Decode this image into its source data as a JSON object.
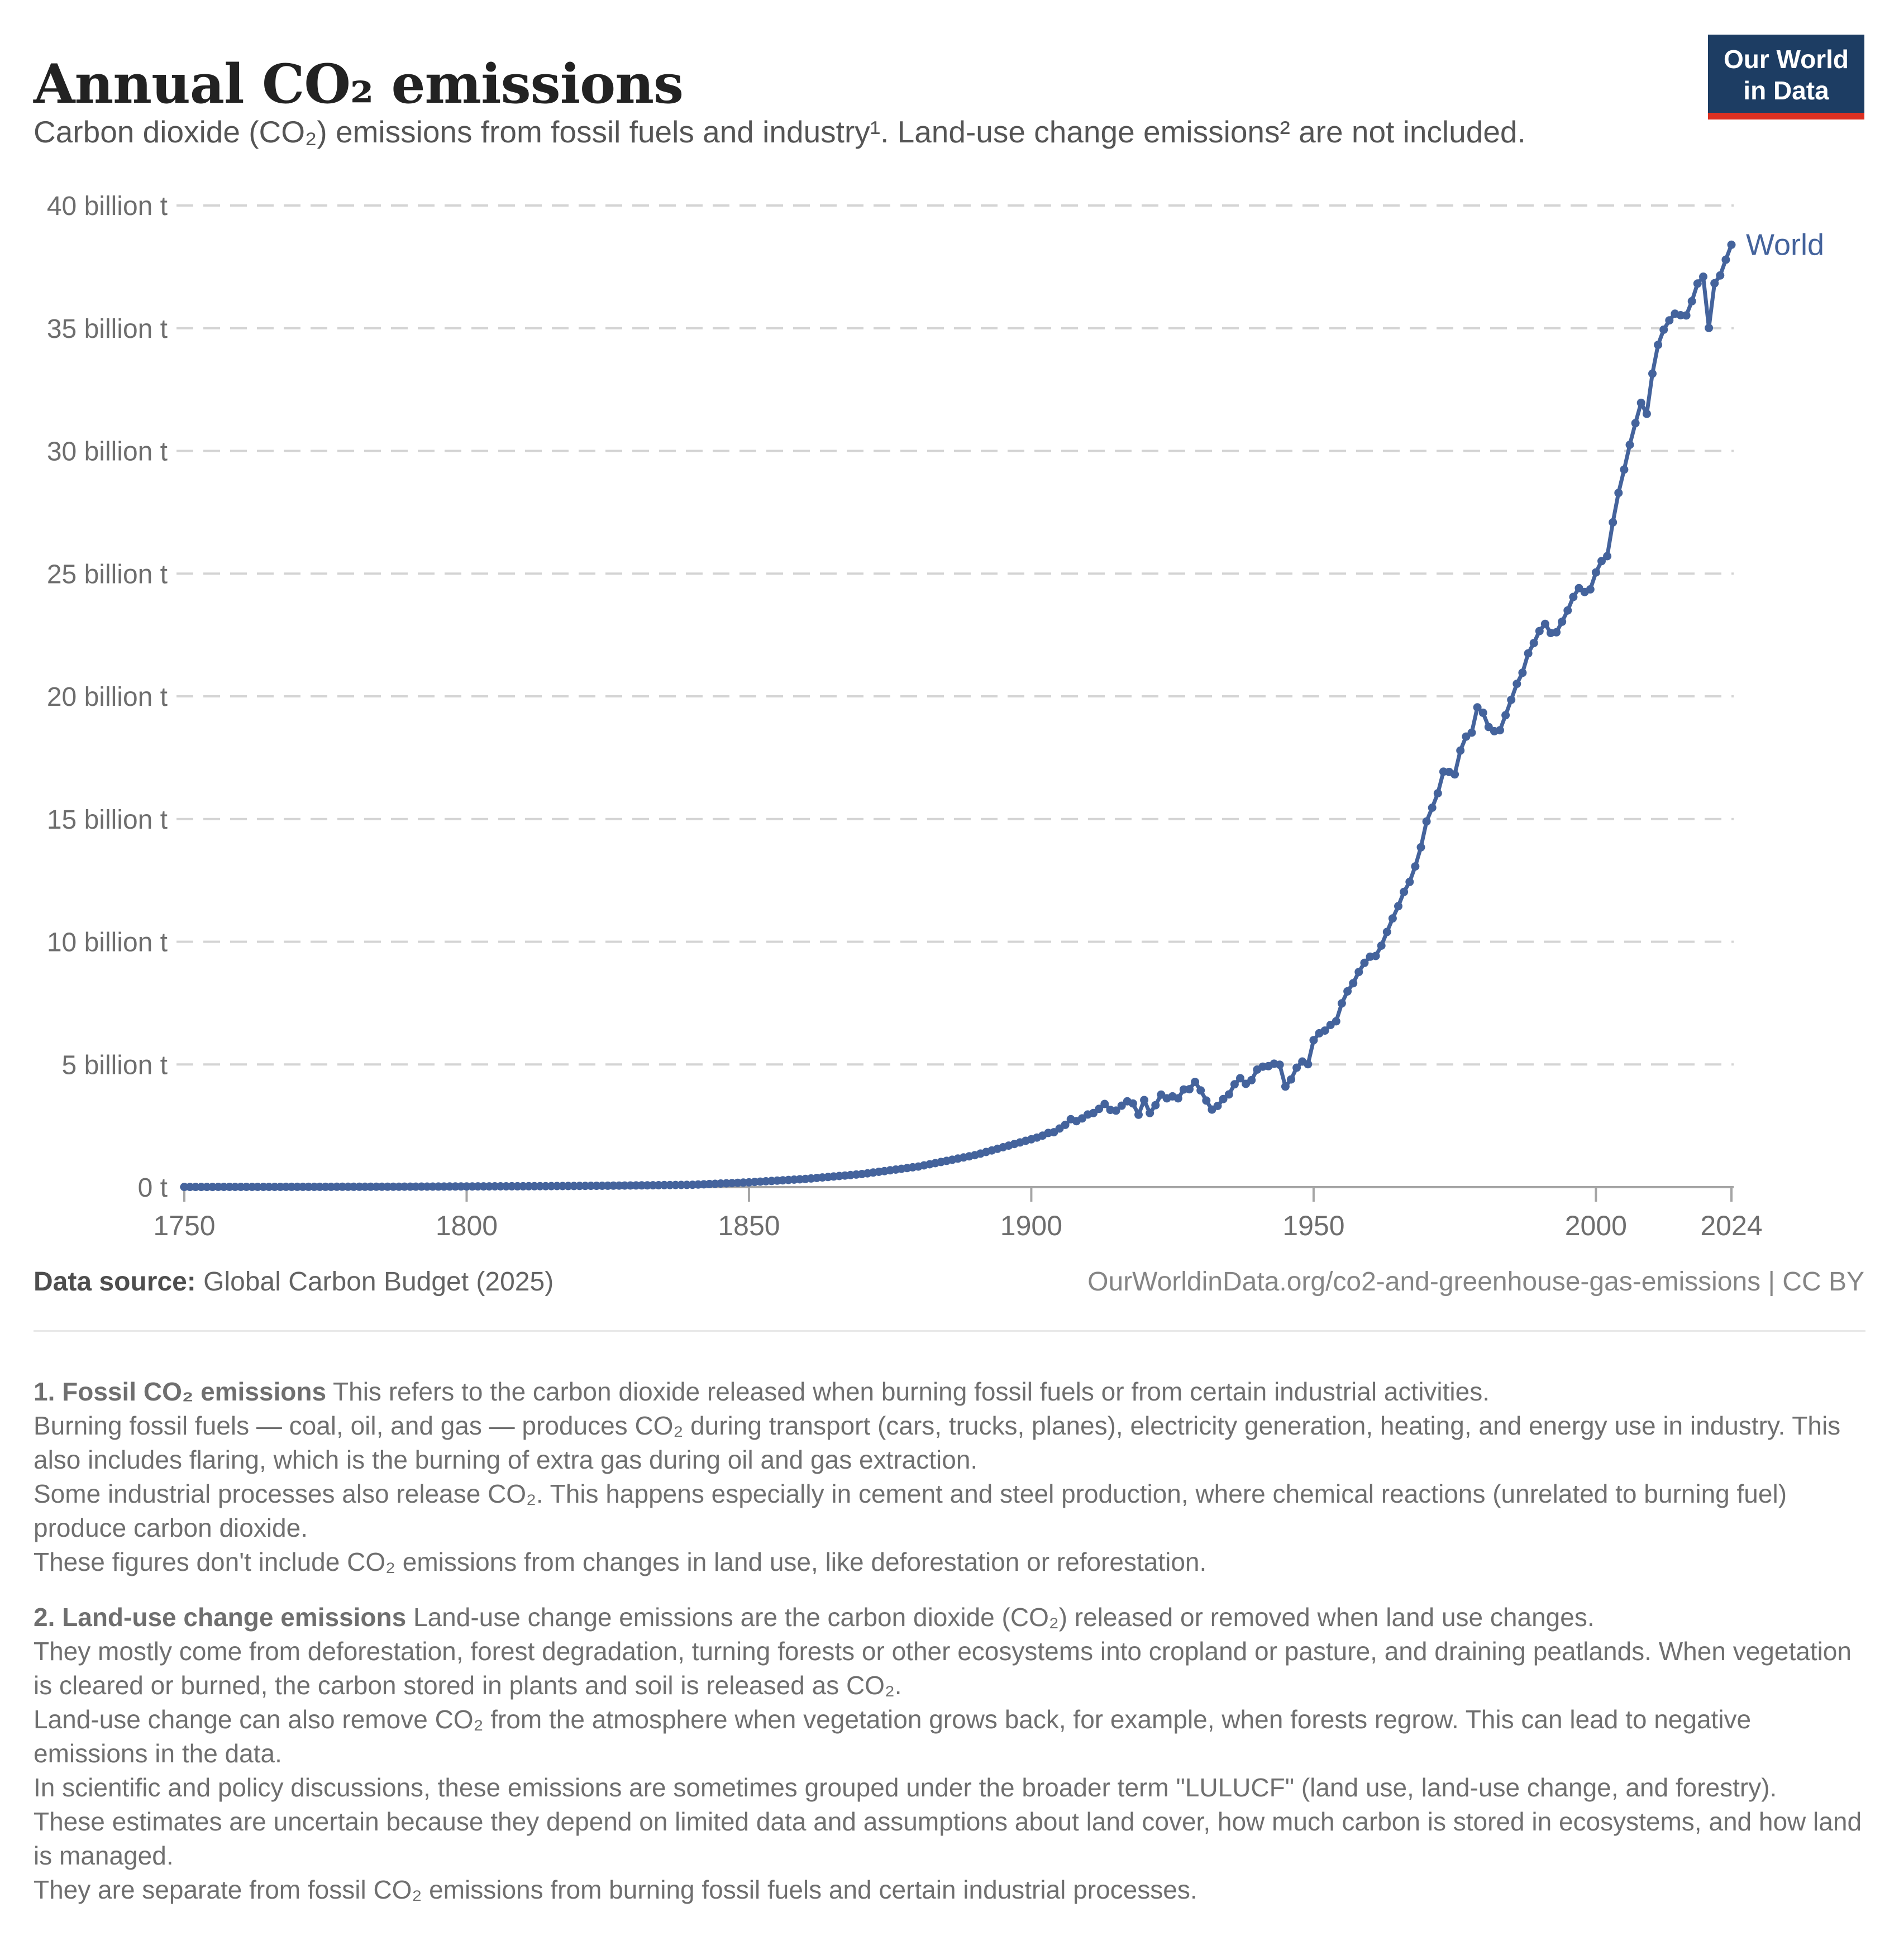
{
  "header": {
    "title": "Annual CO₂ emissions",
    "subtitle": "Carbon dioxide (CO₂) emissions from fossil fuels and industry¹. Land-use change emissions² are not included.",
    "logo": {
      "line1": "Our World",
      "line2": "in Data",
      "bg": "#1d3d63",
      "accent": "#dc3022"
    }
  },
  "chart_data": {
    "type": "line",
    "title": "Annual CO₂ emissions",
    "xlabel": "",
    "ylabel": "",
    "unit": "billion t",
    "xlim": [
      1750,
      2024
    ],
    "ylim": [
      0,
      40
    ],
    "grid": "dashed horizontal",
    "legend_position": "end-of-line label",
    "series_label": "World",
    "color": "#44639C",
    "x_axis": {
      "ticks": [
        1750,
        1800,
        1850,
        1900,
        1950,
        2000,
        2024
      ]
    },
    "y_axis": {
      "ticks": [
        {
          "value": 0,
          "label": "0 t"
        },
        {
          "value": 5,
          "label": "5 billion t"
        },
        {
          "value": 10,
          "label": "10 billion t"
        },
        {
          "value": 15,
          "label": "15 billion t"
        },
        {
          "value": 20,
          "label": "20 billion t"
        },
        {
          "value": 25,
          "label": "25 billion t"
        },
        {
          "value": 30,
          "label": "30 billion t"
        },
        {
          "value": 35,
          "label": "35 billion t"
        },
        {
          "value": 40,
          "label": "40 billion t"
        }
      ]
    },
    "points": [
      [
        1750,
        0.0094
      ],
      [
        1751,
        0.0096
      ],
      [
        1752,
        0.0097
      ],
      [
        1753,
        0.0099
      ],
      [
        1754,
        0.01
      ],
      [
        1755,
        0.0102
      ],
      [
        1756,
        0.0104
      ],
      [
        1757,
        0.0105
      ],
      [
        1758,
        0.0107
      ],
      [
        1759,
        0.0108
      ],
      [
        1760,
        0.011
      ],
      [
        1761,
        0.0112
      ],
      [
        1762,
        0.0114
      ],
      [
        1763,
        0.0116
      ],
      [
        1764,
        0.0118
      ],
      [
        1765,
        0.012
      ],
      [
        1766,
        0.0122
      ],
      [
        1767,
        0.0124
      ],
      [
        1768,
        0.0126
      ],
      [
        1769,
        0.0128
      ],
      [
        1770,
        0.013
      ],
      [
        1771,
        0.0133
      ],
      [
        1772,
        0.0136
      ],
      [
        1773,
        0.0138
      ],
      [
        1774,
        0.0141
      ],
      [
        1775,
        0.0144
      ],
      [
        1776,
        0.0147
      ],
      [
        1777,
        0.015
      ],
      [
        1778,
        0.0152
      ],
      [
        1779,
        0.0155
      ],
      [
        1780,
        0.0158
      ],
      [
        1781,
        0.0162
      ],
      [
        1782,
        0.0166
      ],
      [
        1783,
        0.017
      ],
      [
        1784,
        0.0174
      ],
      [
        1785,
        0.0179
      ],
      [
        1786,
        0.0183
      ],
      [
        1787,
        0.0187
      ],
      [
        1788,
        0.0191
      ],
      [
        1789,
        0.0195
      ],
      [
        1790,
        0.0199
      ],
      [
        1791,
        0.0209
      ],
      [
        1792,
        0.0218
      ],
      [
        1793,
        0.0228
      ],
      [
        1794,
        0.0238
      ],
      [
        1795,
        0.0248
      ],
      [
        1796,
        0.0257
      ],
      [
        1797,
        0.0267
      ],
      [
        1798,
        0.0277
      ],
      [
        1799,
        0.0286
      ],
      [
        1800,
        0.0296
      ],
      [
        1801,
        0.0303
      ],
      [
        1802,
        0.031
      ],
      [
        1803,
        0.0318
      ],
      [
        1804,
        0.0325
      ],
      [
        1805,
        0.0332
      ],
      [
        1806,
        0.0339
      ],
      [
        1807,
        0.0346
      ],
      [
        1808,
        0.0354
      ],
      [
        1809,
        0.0361
      ],
      [
        1810,
        0.0368
      ],
      [
        1811,
        0.0381
      ],
      [
        1812,
        0.0393
      ],
      [
        1813,
        0.0406
      ],
      [
        1814,
        0.0418
      ],
      [
        1815,
        0.0431
      ],
      [
        1816,
        0.0444
      ],
      [
        1817,
        0.0456
      ],
      [
        1818,
        0.0469
      ],
      [
        1819,
        0.0481
      ],
      [
        1820,
        0.0494
      ],
      [
        1821,
        0.0514
      ],
      [
        1822,
        0.0535
      ],
      [
        1823,
        0.0555
      ],
      [
        1824,
        0.0576
      ],
      [
        1825,
        0.0596
      ],
      [
        1826,
        0.0616
      ],
      [
        1827,
        0.0637
      ],
      [
        1828,
        0.0657
      ],
      [
        1829,
        0.0678
      ],
      [
        1830,
        0.0698
      ],
      [
        1831,
        0.0725
      ],
      [
        1832,
        0.0752
      ],
      [
        1833,
        0.0779
      ],
      [
        1834,
        0.0806
      ],
      [
        1835,
        0.0834
      ],
      [
        1836,
        0.0861
      ],
      [
        1837,
        0.0888
      ],
      [
        1838,
        0.0915
      ],
      [
        1839,
        0.0942
      ],
      [
        1840,
        0.0969
      ],
      [
        1841,
        0.1069
      ],
      [
        1842,
        0.1168
      ],
      [
        1843,
        0.1268
      ],
      [
        1844,
        0.1368
      ],
      [
        1845,
        0.1468
      ],
      [
        1846,
        0.1567
      ],
      [
        1847,
        0.1667
      ],
      [
        1848,
        0.1767
      ],
      [
        1849,
        0.1866
      ],
      [
        1850,
        0.1966
      ],
      [
        1851,
        0.2105
      ],
      [
        1852,
        0.2243
      ],
      [
        1853,
        0.2382
      ],
      [
        1854,
        0.252
      ],
      [
        1855,
        0.2659
      ],
      [
        1856,
        0.2797
      ],
      [
        1857,
        0.2936
      ],
      [
        1858,
        0.3074
      ],
      [
        1859,
        0.3213
      ],
      [
        1860,
        0.3351
      ],
      [
        1861,
        0.355
      ],
      [
        1862,
        0.3749
      ],
      [
        1863,
        0.3948
      ],
      [
        1864,
        0.4147
      ],
      [
        1865,
        0.4346
      ],
      [
        1866,
        0.4545
      ],
      [
        1867,
        0.4744
      ],
      [
        1868,
        0.4943
      ],
      [
        1869,
        0.5142
      ],
      [
        1870,
        0.5341
      ],
      [
        1871,
        0.5647
      ],
      [
        1872,
        0.5953
      ],
      [
        1873,
        0.6258
      ],
      [
        1874,
        0.6564
      ],
      [
        1875,
        0.687
      ],
      [
        1876,
        0.7176
      ],
      [
        1877,
        0.7482
      ],
      [
        1878,
        0.7787
      ],
      [
        1879,
        0.8093
      ],
      [
        1880,
        0.8399
      ],
      [
        1881,
        0.8863
      ],
      [
        1882,
        0.9326
      ],
      [
        1883,
        0.979
      ],
      [
        1884,
        1.0253
      ],
      [
        1885,
        1.0717
      ],
      [
        1886,
        1.118
      ],
      [
        1887,
        1.1644
      ],
      [
        1888,
        1.2107
      ],
      [
        1889,
        1.2571
      ],
      [
        1890,
        1.3034
      ],
      [
        1891,
        1.3683
      ],
      [
        1892,
        1.4332
      ],
      [
        1893,
        1.4981
      ],
      [
        1894,
        1.563
      ],
      [
        1895,
        1.6279
      ],
      [
        1896,
        1.6928
      ],
      [
        1897,
        1.7577
      ],
      [
        1898,
        1.8226
      ],
      [
        1899,
        1.8875
      ],
      [
        1900,
        1.95
      ],
      [
        1901,
        2.02
      ],
      [
        1902,
        2.1
      ],
      [
        1903,
        2.21
      ],
      [
        1904,
        2.24
      ],
      [
        1905,
        2.39
      ],
      [
        1906,
        2.54
      ],
      [
        1907,
        2.77
      ],
      [
        1908,
        2.69
      ],
      [
        1909,
        2.8
      ],
      [
        1910,
        2.96
      ],
      [
        1911,
        3.02
      ],
      [
        1912,
        3.19
      ],
      [
        1913,
        3.39
      ],
      [
        1914,
        3.15
      ],
      [
        1915,
        3.12
      ],
      [
        1916,
        3.32
      ],
      [
        1917,
        3.5
      ],
      [
        1918,
        3.41
      ],
      [
        1919,
        2.95
      ],
      [
        1920,
        3.55
      ],
      [
        1921,
        3.02
      ],
      [
        1922,
        3.34
      ],
      [
        1923,
        3.77
      ],
      [
        1924,
        3.62
      ],
      [
        1925,
        3.7
      ],
      [
        1926,
        3.62
      ],
      [
        1927,
        3.98
      ],
      [
        1928,
        3.99
      ],
      [
        1929,
        4.29
      ],
      [
        1930,
        3.94
      ],
      [
        1931,
        3.53
      ],
      [
        1932,
        3.16
      ],
      [
        1933,
        3.31
      ],
      [
        1934,
        3.59
      ],
      [
        1935,
        3.78
      ],
      [
        1936,
        4.19
      ],
      [
        1937,
        4.44
      ],
      [
        1938,
        4.21
      ],
      [
        1939,
        4.36
      ],
      [
        1940,
        4.79
      ],
      [
        1941,
        4.91
      ],
      [
        1942,
        4.93
      ],
      [
        1943,
        5.03
      ],
      [
        1944,
        4.99
      ],
      [
        1945,
        4.1
      ],
      [
        1946,
        4.39
      ],
      [
        1947,
        4.87
      ],
      [
        1948,
        5.12
      ],
      [
        1949,
        5.01
      ],
      [
        1950,
        5.99
      ],
      [
        1951,
        6.27
      ],
      [
        1952,
        6.38
      ],
      [
        1953,
        6.61
      ],
      [
        1954,
        6.76
      ],
      [
        1955,
        7.49
      ],
      [
        1956,
        7.98
      ],
      [
        1957,
        8.31
      ],
      [
        1958,
        8.77
      ],
      [
        1959,
        9.14
      ],
      [
        1960,
        9.39
      ],
      [
        1961,
        9.42
      ],
      [
        1962,
        9.84
      ],
      [
        1963,
        10.4
      ],
      [
        1964,
        10.95
      ],
      [
        1965,
        11.45
      ],
      [
        1966,
        12.03
      ],
      [
        1967,
        12.44
      ],
      [
        1968,
        13.07
      ],
      [
        1969,
        13.85
      ],
      [
        1970,
        14.9
      ],
      [
        1971,
        15.46
      ],
      [
        1972,
        16.05
      ],
      [
        1973,
        16.93
      ],
      [
        1974,
        16.92
      ],
      [
        1975,
        16.82
      ],
      [
        1976,
        17.79
      ],
      [
        1977,
        18.36
      ],
      [
        1978,
        18.52
      ],
      [
        1979,
        19.55
      ],
      [
        1980,
        19.33
      ],
      [
        1981,
        18.75
      ],
      [
        1982,
        18.58
      ],
      [
        1983,
        18.62
      ],
      [
        1984,
        19.23
      ],
      [
        1985,
        19.86
      ],
      [
        1986,
        20.51
      ],
      [
        1987,
        20.96
      ],
      [
        1988,
        21.75
      ],
      [
        1989,
        22.17
      ],
      [
        1990,
        22.66
      ],
      [
        1991,
        22.95
      ],
      [
        1992,
        22.58
      ],
      [
        1993,
        22.61
      ],
      [
        1994,
        23.04
      ],
      [
        1995,
        23.5
      ],
      [
        1996,
        24.05
      ],
      [
        1997,
        24.41
      ],
      [
        1998,
        24.25
      ],
      [
        1999,
        24.36
      ],
      [
        2000,
        25.05
      ],
      [
        2001,
        25.51
      ],
      [
        2002,
        25.71
      ],
      [
        2003,
        27.09
      ],
      [
        2004,
        28.29
      ],
      [
        2005,
        29.24
      ],
      [
        2006,
        30.25
      ],
      [
        2007,
        31.13
      ],
      [
        2008,
        31.96
      ],
      [
        2009,
        31.51
      ],
      [
        2010,
        33.15
      ],
      [
        2011,
        34.32
      ],
      [
        2012,
        34.94
      ],
      [
        2013,
        35.32
      ],
      [
        2014,
        35.59
      ],
      [
        2015,
        35.53
      ],
      [
        2016,
        35.52
      ],
      [
        2017,
        36.1
      ],
      [
        2018,
        36.82
      ],
      [
        2019,
        37.1
      ],
      [
        2020,
        35.01
      ],
      [
        2021,
        36.83
      ],
      [
        2022,
        37.15
      ],
      [
        2023,
        37.79
      ],
      [
        2024,
        38.4
      ]
    ]
  },
  "footer": {
    "source_label": "Data source:",
    "source_text": " Global Carbon Budget (2025)",
    "attribution": "OurWorldinData.org/co2-and-greenhouse-gas-emissions | CC BY"
  },
  "footnotes": [
    {
      "lead": "1. Fossil CO₂ emissions",
      "intro": "This refers to the carbon dioxide released when burning fossil fuels or from certain industrial activities.",
      "lines": [
        "Burning fossil fuels — coal, oil, and gas — produces CO₂ during transport (cars, trucks, planes), electricity generation, heating, and energy use in industry. This also includes flaring, which is the burning of extra gas during oil and gas extraction.",
        "Some industrial processes also release CO₂. This happens especially in cement and steel production, where chemical reactions (unrelated to burning fuel) produce carbon dioxide.",
        "These figures don't include CO₂ emissions from changes in land use, like deforestation or reforestation."
      ]
    },
    {
      "lead": "2. Land-use change emissions",
      "intro": "Land-use change emissions are the carbon dioxide (CO₂) released or removed when land use changes.",
      "lines": [
        "They mostly come from deforestation, forest degradation, turning forests or other ecosystems into cropland or pasture, and draining peatlands. When vegetation is cleared or burned, the carbon stored in plants and soil is released as CO₂.",
        "Land-use change can also remove CO₂ from the atmosphere when vegetation grows back, for example, when forests regrow. This can lead to negative emissions in the data.",
        "In scientific and policy discussions, these emissions are sometimes grouped under the broader term \"LULUCF\" (land use, land-use change, and forestry).",
        "These estimates are uncertain because they depend on limited data and assumptions about land cover, how much carbon is stored in ecosystems, and how land is managed.",
        "They are separate from fossil CO₂ emissions from burning fossil fuels and certain industrial processes."
      ]
    }
  ]
}
